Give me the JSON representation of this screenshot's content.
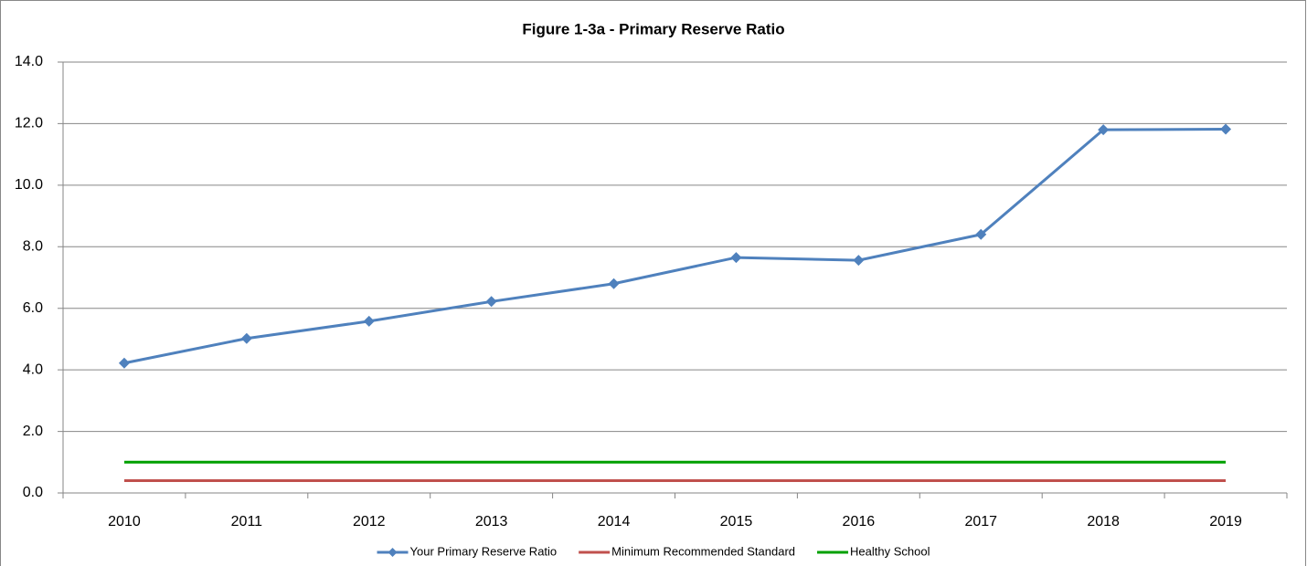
{
  "chart_data": {
    "type": "line",
    "title": "Figure 1-3a - Primary Reserve Ratio",
    "categories": [
      "2010",
      "2011",
      "2012",
      "2013",
      "2014",
      "2015",
      "2016",
      "2017",
      "2018",
      "2019"
    ],
    "series": [
      {
        "name": "Your Primary Reserve Ratio",
        "color": "#4f81bd",
        "marker": "diamond",
        "values": [
          4.22,
          5.02,
          5.58,
          6.22,
          6.8,
          7.65,
          7.56,
          8.4,
          11.8,
          11.82
        ]
      },
      {
        "name": "Minimum Recommended Standard",
        "color": "#c0504d",
        "values": [
          0.4,
          0.4,
          0.4,
          0.4,
          0.4,
          0.4,
          0.4,
          0.4,
          0.4,
          0.4
        ]
      },
      {
        "name": "Healthy School",
        "color": "#00a000",
        "values": [
          1.0,
          1.0,
          1.0,
          1.0,
          1.0,
          1.0,
          1.0,
          1.0,
          1.0,
          1.0
        ]
      }
    ],
    "ylim": [
      0,
      14
    ],
    "yticks": [
      {
        "value": 0,
        "label": "0.0"
      },
      {
        "value": 2,
        "label": "2.0"
      },
      {
        "value": 4,
        "label": "4.0"
      },
      {
        "value": 6,
        "label": "6.0"
      },
      {
        "value": 8,
        "label": "8.0"
      },
      {
        "value": 10,
        "label": "10.0"
      },
      {
        "value": 12,
        "label": "12.0"
      },
      {
        "value": 14,
        "label": "14.0"
      }
    ],
    "grid": true,
    "legend": "bottom"
  }
}
